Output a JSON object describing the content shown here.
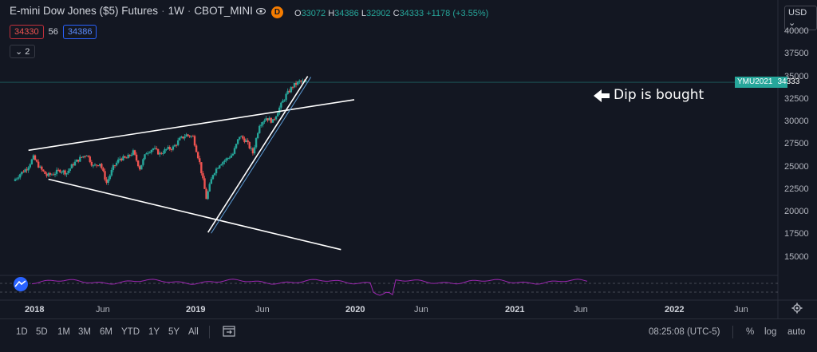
{
  "header": {
    "title": "E-mini Dow Jones ($5) Futures",
    "interval": "1W",
    "exchange": "CBOT_MINI",
    "badge": "D",
    "ohlc": {
      "o_label": "O",
      "o": "33072",
      "h_label": "H",
      "h": "34386",
      "l_label": "L",
      "l": "32902",
      "c_label": "C",
      "c": "34333",
      "change": "+1178 (+3.55%)"
    }
  },
  "bid": "34330",
  "spread": "56",
  "ask": "34386",
  "indicator_count": "2",
  "currency": "USD",
  "price_axis": [
    "40000",
    "37500",
    "35000",
    "32500",
    "30000",
    "27500",
    "25000",
    "22500",
    "20000",
    "17500",
    "15000"
  ],
  "last_price": {
    "symbol": "YMU2021",
    "price": "34333"
  },
  "annotation": "Dip is bought",
  "time_axis": [
    {
      "label": "2018",
      "year": true
    },
    {
      "label": "Jun",
      "year": false
    },
    {
      "label": "2019",
      "year": true
    },
    {
      "label": "Jun",
      "year": false
    },
    {
      "label": "2020",
      "year": true
    },
    {
      "label": "Jun",
      "year": false
    },
    {
      "label": "2021",
      "year": true
    },
    {
      "label": "Jun",
      "year": false
    },
    {
      "label": "2022",
      "year": true
    },
    {
      "label": "Jun",
      "year": false
    }
  ],
  "ranges": [
    "1D",
    "5D",
    "1M",
    "3M",
    "6M",
    "YTD",
    "1Y",
    "5Y",
    "All"
  ],
  "clock": "08:25:08 (UTC-5)",
  "options": {
    "percent": "%",
    "log": "log",
    "auto": "auto"
  },
  "colors": {
    "background": "#131722",
    "up": "#26a69a",
    "down": "#ef5350",
    "rsi": "#9c27b0",
    "trendline": "#ffffff"
  },
  "chart_data": {
    "type": "candlestick",
    "interval": "1W",
    "x": [
      "2017-10",
      "2017-11",
      "2017-12",
      "2018-01",
      "2018-02",
      "2018-03",
      "2018-04",
      "2018-05",
      "2018-06",
      "2018-07",
      "2018-08",
      "2018-09",
      "2018-10",
      "2018-11",
      "2018-12",
      "2019-01",
      "2019-02",
      "2019-03",
      "2019-04",
      "2019-05",
      "2019-06",
      "2019-07",
      "2019-08",
      "2019-09",
      "2019-10",
      "2019-11",
      "2019-12",
      "2020-01",
      "2020-02",
      "2020-03",
      "2020-04",
      "2020-05",
      "2020-06",
      "2020-07",
      "2020-08",
      "2020-09",
      "2020-10",
      "2020-11",
      "2020-12",
      "2021-01",
      "2021-02",
      "2021-03",
      "2021-04",
      "2021-05",
      "2021-06"
    ],
    "close": [
      23400,
      24200,
      24800,
      26000,
      24800,
      24000,
      24200,
      24600,
      24300,
      25300,
      25900,
      26400,
      25000,
      25400,
      23200,
      24900,
      25900,
      25900,
      26600,
      24800,
      26600,
      27000,
      26400,
      26900,
      27100,
      28000,
      28500,
      28300,
      25400,
      21500,
      24200,
      25300,
      25800,
      26400,
      28400,
      27800,
      26500,
      29700,
      30400,
      30000,
      31500,
      32900,
      33900,
      34400,
      34333
    ],
    "ylim": [
      14000,
      41000
    ],
    "yscale": "linear",
    "trendlines": [
      {
        "x": [
          "2017-12",
          "2022-01"
        ],
        "y": [
          26800,
          32400
        ]
      },
      {
        "x": [
          "2018-03",
          "2021-11"
        ],
        "y": [
          23600,
          15800
        ]
      },
      {
        "x": [
          "2020-03",
          "2021-06"
        ],
        "y": [
          17700,
          35000
        ]
      }
    ],
    "indicator": {
      "name": "RSI",
      "color": "#9c27b0"
    }
  }
}
